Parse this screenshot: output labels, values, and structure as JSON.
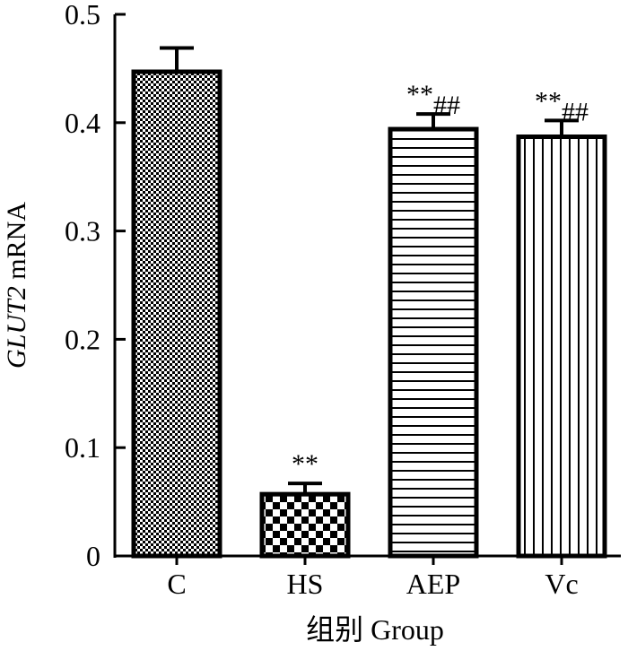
{
  "chart_data": {
    "type": "bar",
    "categories": [
      "C",
      "HS",
      "AEP",
      "Vc"
    ],
    "values": [
      0.447,
      0.057,
      0.394,
      0.387
    ],
    "errors": [
      0.022,
      0.01,
      0.014,
      0.015
    ],
    "annotations": [
      "",
      "**",
      "**##",
      "**##"
    ],
    "patterns": [
      "fine-checker",
      "coarse-checker",
      "horizontal-stripes",
      "vertical-stripes"
    ],
    "ylabel_italic": "GLUT2",
    "ylabel_rest": " mRNA",
    "xlabel": "组别 Group",
    "ylim": [
      0,
      0.5
    ],
    "yticks": [
      "0",
      "0.1",
      "0.2",
      "0.3",
      "0.4",
      "0.5"
    ]
  }
}
